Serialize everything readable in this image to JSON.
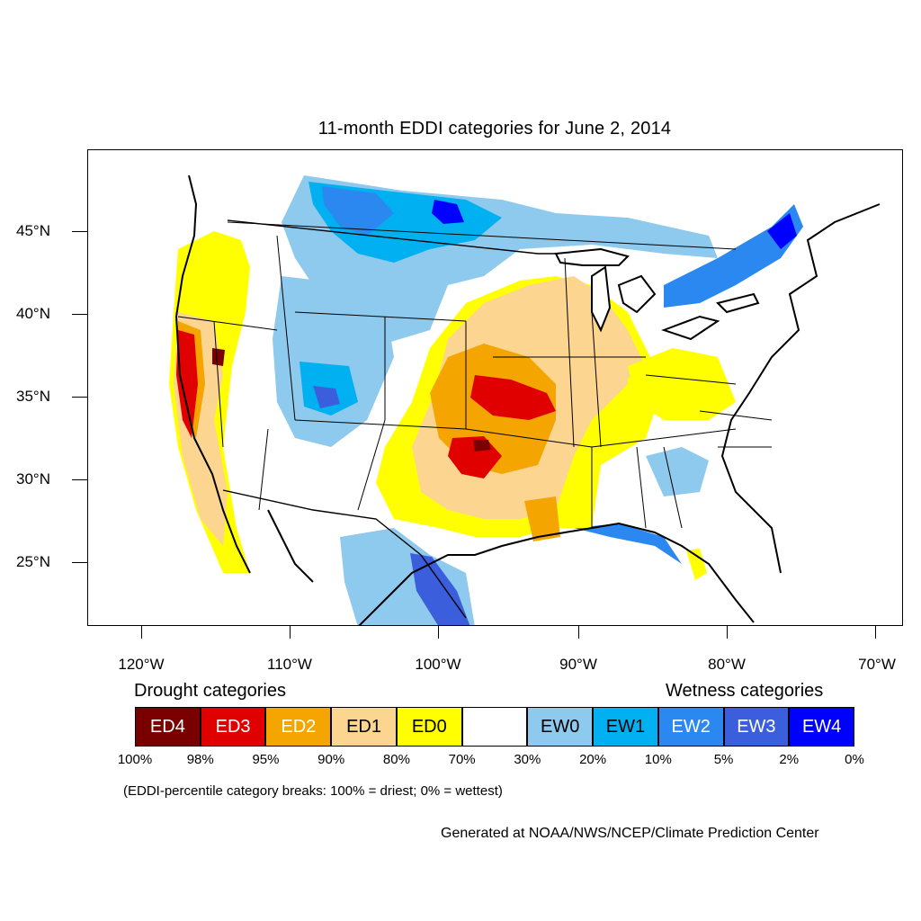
{
  "title": "11-month EDDI categories for June 2, 2014",
  "map": {
    "lat_labels": [
      "45°N",
      "40°N",
      "35°N",
      "30°N",
      "25°N"
    ],
    "lon_labels": [
      "120°W",
      "110°W",
      "100°W",
      "90°W",
      "80°W",
      "70°W"
    ],
    "colors": {
      "ED4": "#7a0000",
      "ED3": "#e00000",
      "ED2": "#f5a500",
      "ED1": "#fcd590",
      "ED0": "#ffff00",
      "neutral": "#ffffff",
      "EW0": "#8ec9ee",
      "EW1": "#00b0f0",
      "EW2": "#2a88f0",
      "EW3": "#3a5edc",
      "EW4": "#0000ff"
    }
  },
  "legend": {
    "drought_heading": "Drought categories",
    "wetness_heading": "Wetness categories",
    "categories": [
      {
        "label": "ED4",
        "color": "#7a0000",
        "text_color": "#ffffff"
      },
      {
        "label": "ED3",
        "color": "#e00000",
        "text_color": "#ffffff"
      },
      {
        "label": "ED2",
        "color": "#f5a500",
        "text_color": "#ffffff"
      },
      {
        "label": "ED1",
        "color": "#fcd590",
        "text_color": "#000000"
      },
      {
        "label": "ED0",
        "color": "#ffff00",
        "text_color": "#000000"
      },
      {
        "label": "",
        "color": "#ffffff",
        "text_color": "#000000"
      },
      {
        "label": "EW0",
        "color": "#8ec9ee",
        "text_color": "#000000"
      },
      {
        "label": "EW1",
        "color": "#00b0f0",
        "text_color": "#000000"
      },
      {
        "label": "EW2",
        "color": "#2a88f0",
        "text_color": "#ffffff"
      },
      {
        "label": "EW3",
        "color": "#3a5edc",
        "text_color": "#ffffff"
      },
      {
        "label": "EW4",
        "color": "#0000ff",
        "text_color": "#ffffff"
      }
    ],
    "percentiles": [
      "100%",
      "98%",
      "95%",
      "90%",
      "80%",
      "70%",
      "30%",
      "20%",
      "10%",
      "5%",
      "2%",
      "0%"
    ],
    "note": "(EDDI-percentile category breaks: 100% = driest; 0% = wettest)"
  },
  "credit": "Generated at NOAA/NWS/NCEP/Climate Prediction Center"
}
